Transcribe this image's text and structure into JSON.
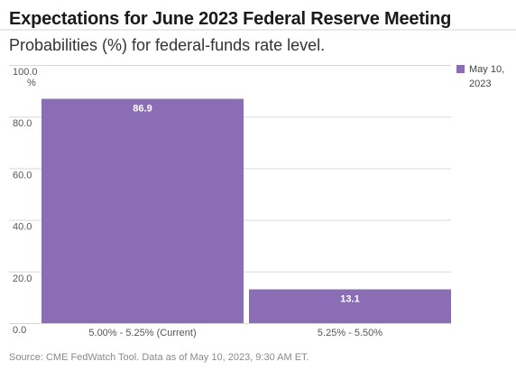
{
  "chart_data": {
    "type": "bar",
    "title": "Expectations for June 2023 Federal Reserve Meeting",
    "subtitle": "Probabilities (%) for federal-funds rate level.",
    "categories": [
      "5.00% - 5.25% (Current)",
      "5.25% - 5.50%"
    ],
    "series": [
      {
        "name": "May 10, 2023",
        "values": [
          86.9,
          13.1
        ],
        "color": "#8a6db5"
      }
    ],
    "data_labels": [
      "86.9",
      "13.1"
    ],
    "y_ticks": [
      "0.0",
      "20.0",
      "40.0",
      "60.0",
      "80.0",
      "100.0"
    ],
    "y_tick_values": [
      0,
      20,
      40,
      60,
      80,
      100
    ],
    "y_unit": "%",
    "ylim": [
      0,
      100
    ],
    "grid": true,
    "legend_position": "top-right",
    "legend_lines": [
      "May 10,",
      "2023"
    ]
  },
  "source": "Source: CME FedWatch Tool. Data as of May 10, 2023, 9:30 AM ET."
}
